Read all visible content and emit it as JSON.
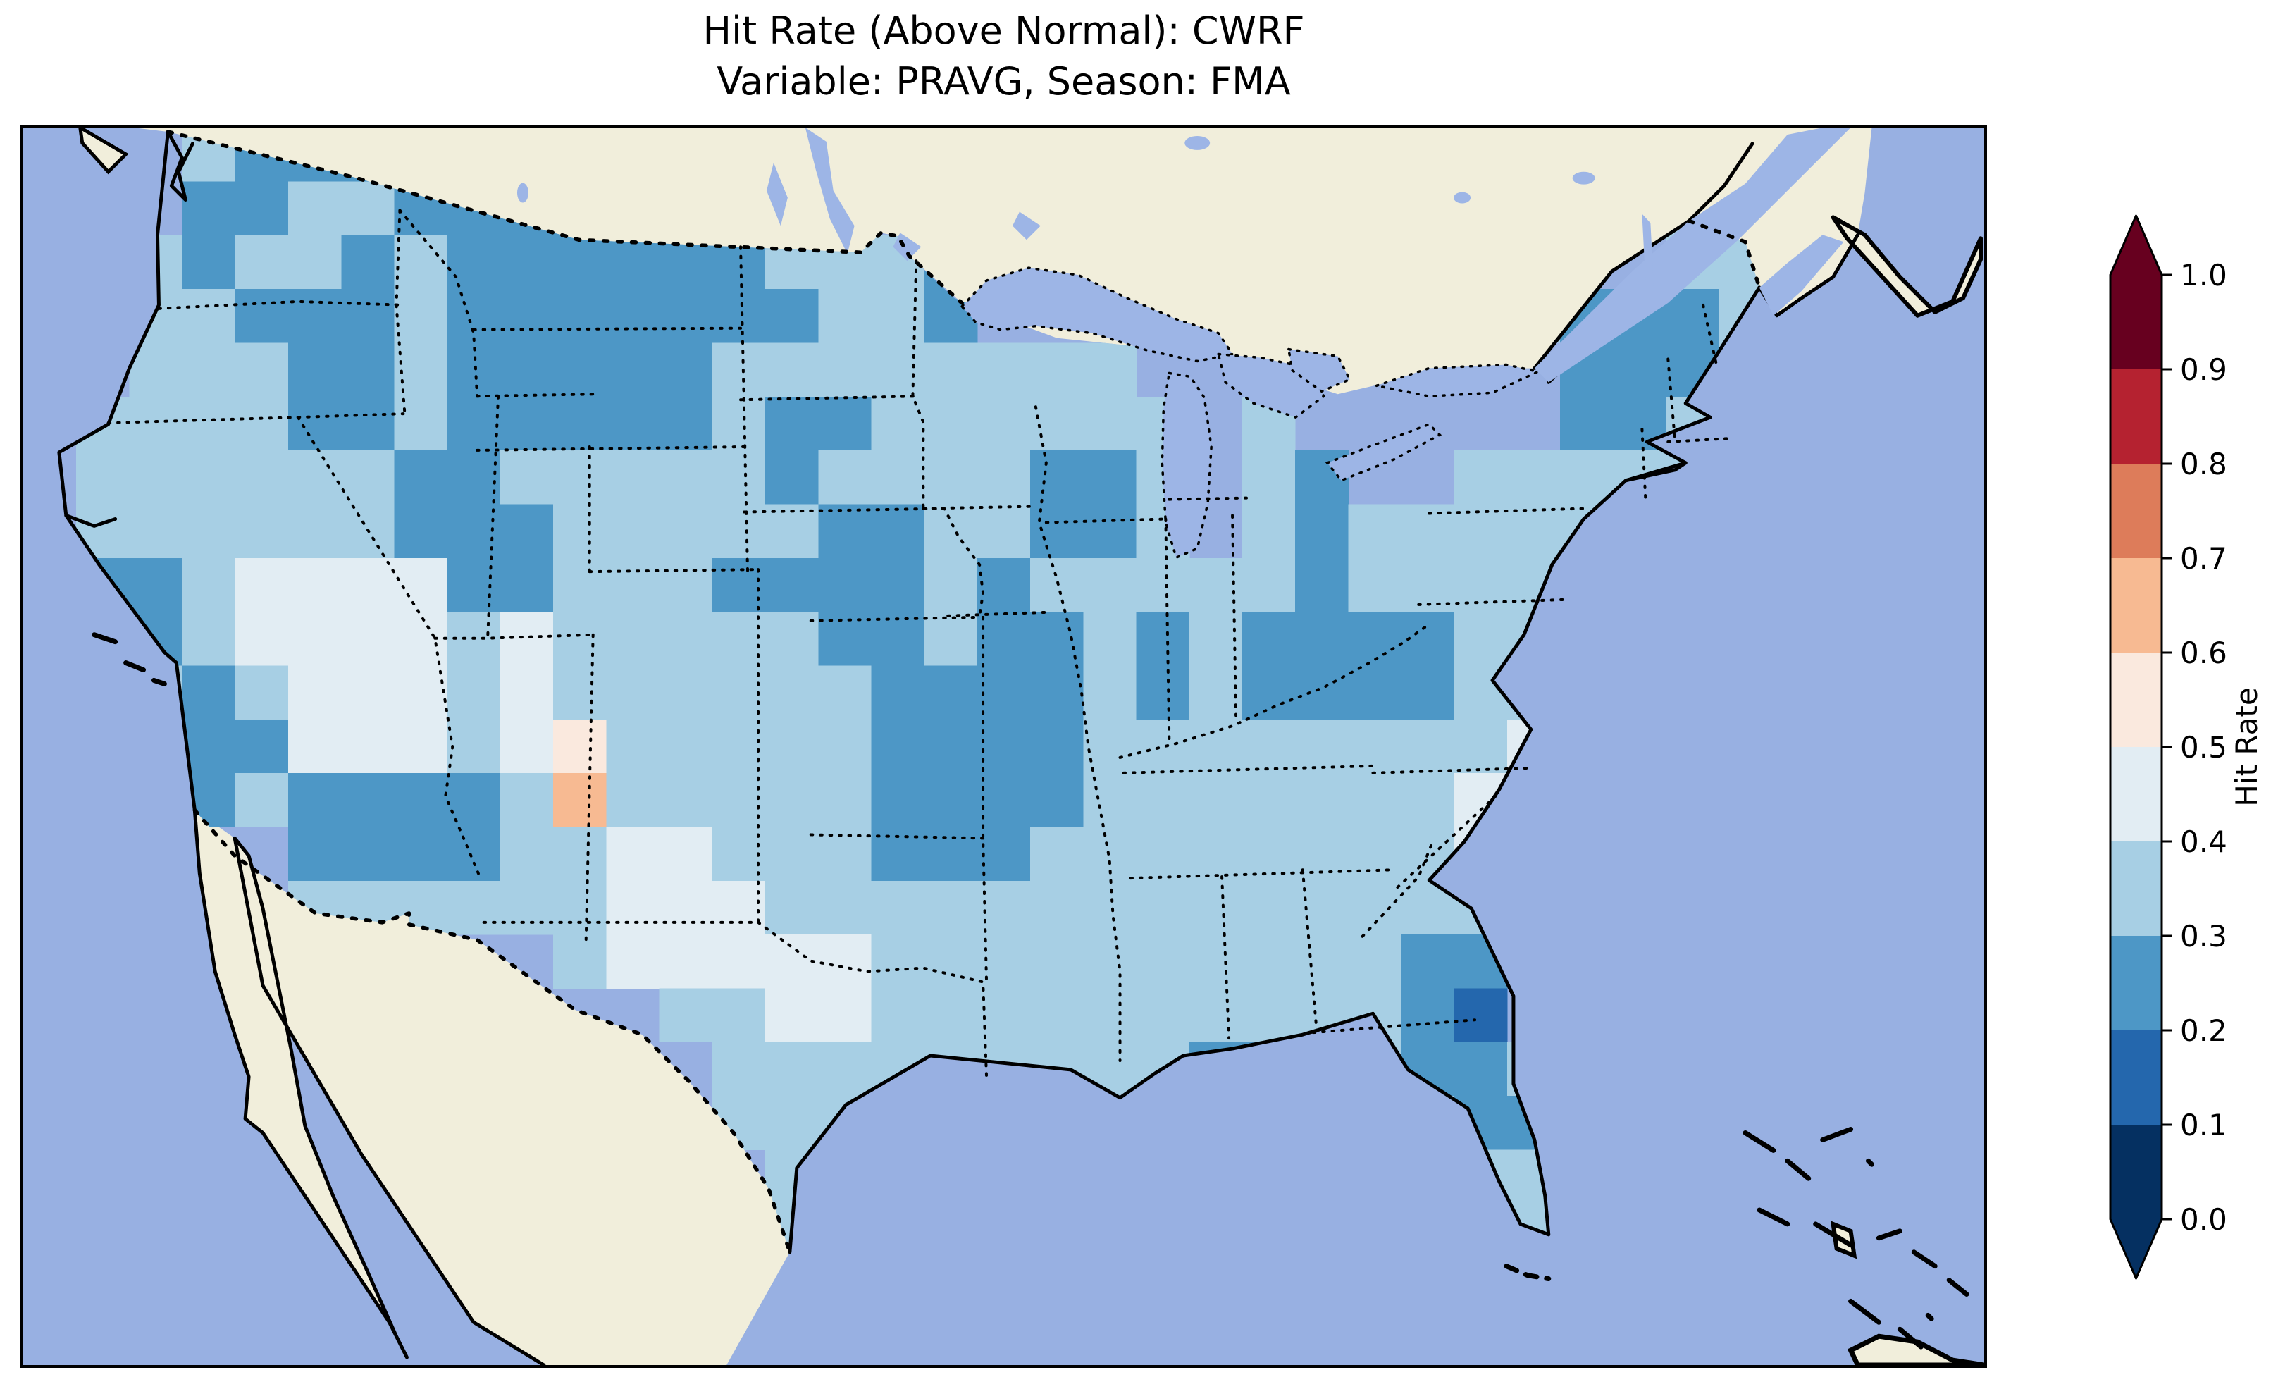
{
  "figure": {
    "title_line1": "Hit Rate (Above Normal): CWRF",
    "title_line2": "Variable: PRAVG, Season: FMA"
  },
  "colorbar": {
    "label": "Hit Rate",
    "tick_labels_top_to_bottom": [
      "1.0",
      "0.9",
      "0.8",
      "0.7",
      "0.6",
      "0.5",
      "0.4",
      "0.3",
      "0.2",
      "0.1",
      "0.0"
    ],
    "orientation": "vertical",
    "extend": "both"
  },
  "map_style": {
    "ocean_color": "#98b0e2",
    "lake_color": "#9db5e6",
    "land_nodata_color": "#f1eedb",
    "coastline_color": "#000000",
    "country_border_style": "dashed",
    "state_border_style": "dotted"
  },
  "chart_data": {
    "type": "heatmap",
    "title": "Hit Rate (Above Normal): CWRF",
    "subtitle": "Variable: PRAVG, Season: FMA",
    "model": "CWRF",
    "variable": "PRAVG",
    "season": "FMA",
    "region": "Contiguous United States (Lambert-style map)",
    "colorbar_label": "Hit Rate",
    "ticks": [
      0.0,
      0.1,
      0.2,
      0.3,
      0.4,
      0.5,
      0.6,
      0.7,
      0.8,
      0.9,
      1.0
    ],
    "value_range": [
      0.0,
      1.0
    ],
    "colormap_name": "RdBu_r (10 discrete bins, arrows both ends)",
    "bin_colors_low_to_high": [
      "#053061",
      "#2467ad",
      "#4d97c6",
      "#a7cfe4",
      "#e2edf3",
      "#fae9de",
      "#f7ba92",
      "#dd7c5a",
      "#b52230",
      "#67001f"
    ],
    "bin_ranges": [
      [
        0.0,
        0.1
      ],
      [
        0.1,
        0.2
      ],
      [
        0.2,
        0.3
      ],
      [
        0.3,
        0.4
      ],
      [
        0.4,
        0.5
      ],
      [
        0.5,
        0.6
      ],
      [
        0.6,
        0.7
      ],
      [
        0.7,
        0.8
      ],
      [
        0.8,
        0.9
      ],
      [
        0.9,
        1.0
      ]
    ],
    "grid": {
      "description": "Coarse reconstruction of the gridded hit-rate field over CONUS. Each char is one cell; digit = bin index into bin_colors_low_to_high ('3' means 0.3-0.4); '.' = no data (ocean / outside USA).",
      "ncols": 37,
      "nrows": 23,
      "legend": {
        ".": "no data",
        "1": "0.1-0.2",
        "2": "0.2-0.3",
        "3": "0.3-0.4",
        "4": "0.4-0.5",
        "5": "0.5-0.6",
        "6": "0.6-0.7"
      },
      "rows": [
        "...3222..............................",
        "...223322222...................3.....",
        "..3233232222223332.............33....",
        "..3322232222222332..........32223....",
        "..3332232222233333333........2223....",
        ".333322322222322333333.3.....2233....",
        ".333333223333323333223.32..33333.....",
        ".333333222333332233223.32333333......",
        ".2234444223332222323333323333........",
        ".2234444343333322322323222233........",
        ".3323444343333332222323222233........",
        "..322444345333332222333333334........",
        "...2322223633333222233333334.........",
        ".....22223344333222333333334.........",
        ".....33333344433333333333333.........",
        "..........344444333333333322.........",
        "............3344333333333321.........",
        ".............3333333332233223........",
        ".............333.....32233322........",
        "..............3.......3....33........",
        "..............3............33........",
        ".....................................",
        "....................................."
      ]
    },
    "notable_features": [
      "Most of CONUS in 0.3-0.4 (light blue)",
      "0.2-0.3 (medium blue) patches: Pacific Northwest / Montana / Wyoming, Colorado-Kansas, Missouri-Arkansas-Oklahoma, southern Wisconsin, Michigan, Ohio-Kentucky, upstate New York / northern New England, Mississippi-Alabama gulf, central Florida, coastal California",
      "0.4-0.5 (very pale blue) patches: Nevada / Utah / northern Arizona, Texas panhandle and central Texas, Carolina coast",
      "Rare 0.5-0.7 (peach) cells near the Colorado / New Mexico border",
      "One 0.1-0.2 (dark blue) cell in central Florida"
    ]
  }
}
